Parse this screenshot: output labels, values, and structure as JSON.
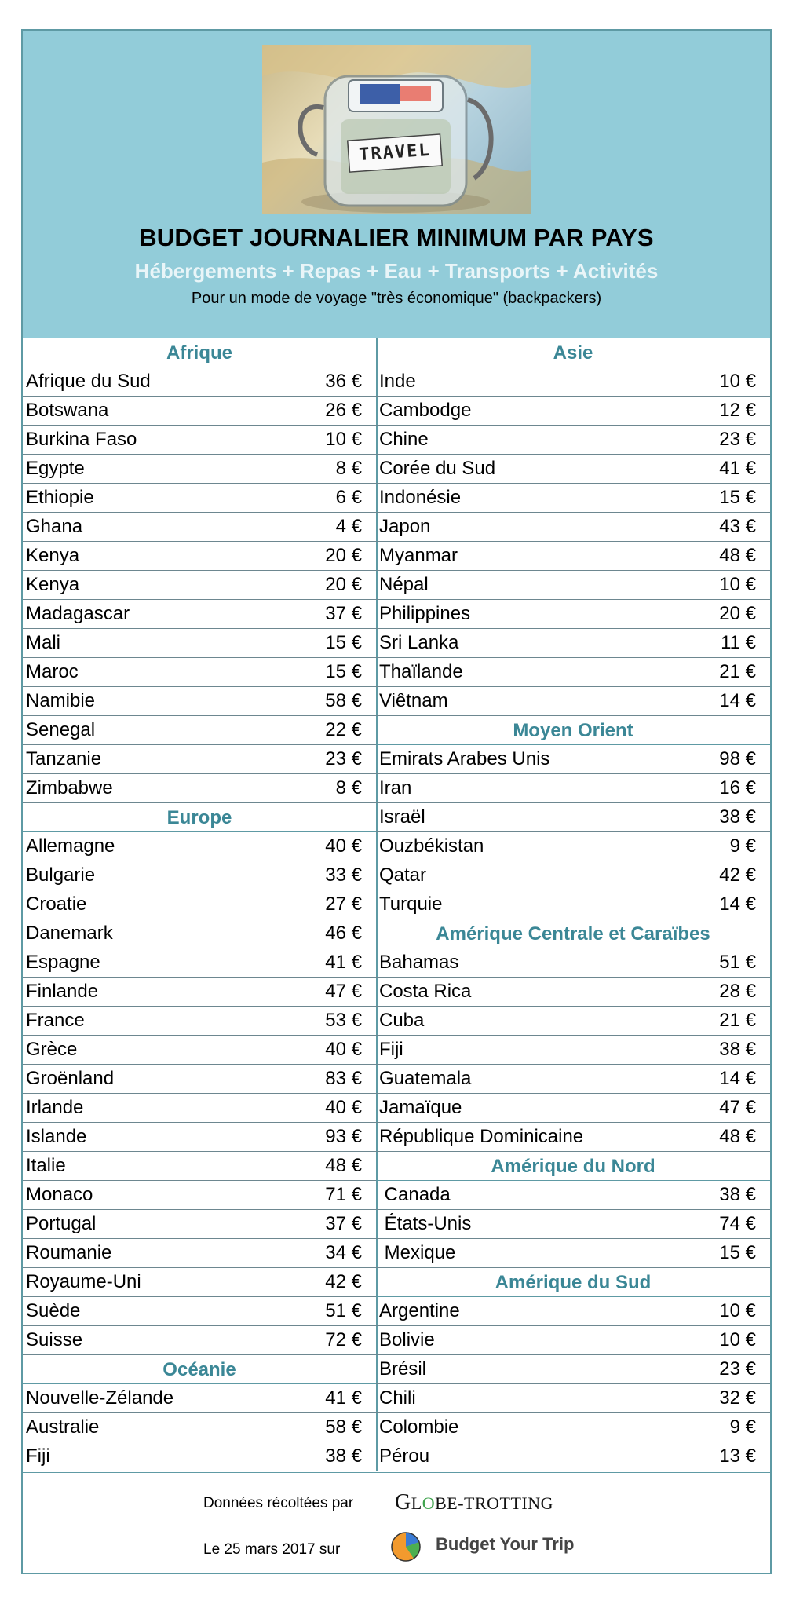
{
  "header": {
    "photo_label": "TRAVEL",
    "title": "BUDGET JOURNALIER MINIMUM PAR PAYS",
    "subtitle": "Hébergements + Repas + Eau + Transports + Activités",
    "note": "Pour un mode de voyage \"très économique\" (backpackers)"
  },
  "left_sections": [
    {
      "title": "Afrique",
      "rows": [
        {
          "name": "Afrique du Sud",
          "value": "36 €"
        },
        {
          "name": "Botswana",
          "value": "26 €"
        },
        {
          "name": "Burkina Faso",
          "value": "10 €"
        },
        {
          "name": "Egypte",
          "value": "8 €"
        },
        {
          "name": "Ethiopie",
          "value": "6 €"
        },
        {
          "name": "Ghana",
          "value": "4 €"
        },
        {
          "name": "Kenya",
          "value": "20 €"
        },
        {
          "name": "Kenya",
          "value": "20 €"
        },
        {
          "name": "Madagascar",
          "value": "37 €"
        },
        {
          "name": "Mali",
          "value": "15 €"
        },
        {
          "name": "Maroc",
          "value": "15 €"
        },
        {
          "name": "Namibie",
          "value": "58 €"
        },
        {
          "name": "Senegal",
          "value": "22 €"
        },
        {
          "name": "Tanzanie",
          "value": "23 €"
        },
        {
          "name": "Zimbabwe",
          "value": "8 €"
        }
      ]
    },
    {
      "title": "Europe",
      "rows": [
        {
          "name": "Allemagne",
          "value": "40 €"
        },
        {
          "name": "Bulgarie",
          "value": "33 €"
        },
        {
          "name": "Croatie",
          "value": "27 €"
        },
        {
          "name": "Danemark",
          "value": "46 €"
        },
        {
          "name": "Espagne",
          "value": "41 €"
        },
        {
          "name": "Finlande",
          "value": "47 €"
        },
        {
          "name": "France",
          "value": "53 €"
        },
        {
          "name": "Grèce",
          "value": "40 €"
        },
        {
          "name": "Groënland",
          "value": "83 €"
        },
        {
          "name": "Irlande",
          "value": "40 €"
        },
        {
          "name": "Islande",
          "value": "93 €"
        },
        {
          "name": "Italie",
          "value": "48 €"
        },
        {
          "name": "Monaco",
          "value": "71 €"
        },
        {
          "name": "Portugal",
          "value": "37 €"
        },
        {
          "name": "Roumanie",
          "value": "34 €"
        },
        {
          "name": "Royaume-Uni",
          "value": "42 €"
        },
        {
          "name": "Suède",
          "value": "51 €"
        },
        {
          "name": "Suisse",
          "value": "72 €"
        }
      ]
    },
    {
      "title": "Océanie",
      "rows": [
        {
          "name": "Nouvelle-Zélande",
          "value": "41 €"
        },
        {
          "name": "Australie",
          "value": "58 €"
        },
        {
          "name": "Fiji",
          "value": "38 €"
        }
      ]
    }
  ],
  "right_sections": [
    {
      "title": "Asie",
      "rows": [
        {
          "name": "Inde",
          "value": "10 €"
        },
        {
          "name": "Cambodge",
          "value": "12 €"
        },
        {
          "name": "Chine",
          "value": "23 €"
        },
        {
          "name": "Corée du Sud",
          "value": "41 €"
        },
        {
          "name": "Indonésie",
          "value": "15 €"
        },
        {
          "name": "Japon",
          "value": "43 €"
        },
        {
          "name": "Myanmar",
          "value": "48 €"
        },
        {
          "name": "Népal",
          "value": "10 €"
        },
        {
          "name": "Philippines",
          "value": "20 €"
        },
        {
          "name": "Sri Lanka",
          "value": "11 €"
        },
        {
          "name": "Thaïlande",
          "value": "21 €"
        },
        {
          "name": "Viêtnam",
          "value": "14 €"
        }
      ]
    },
    {
      "title": "Moyen Orient",
      "rows": [
        {
          "name": "Emirats Arabes Unis",
          "value": "98 €"
        },
        {
          "name": "Iran",
          "value": "16 €"
        },
        {
          "name": "Israël",
          "value": "38 €"
        },
        {
          "name": "Ouzbékistan",
          "value": "9 €"
        },
        {
          "name": "Qatar",
          "value": "42 €"
        },
        {
          "name": "Turquie",
          "value": "14 €"
        }
      ]
    },
    {
      "title": "Amérique Centrale et Caraïbes",
      "rows": [
        {
          "name": "Bahamas",
          "value": "51 €"
        },
        {
          "name": "Costa Rica",
          "value": "28 €"
        },
        {
          "name": "Cuba",
          "value": "21 €"
        },
        {
          "name": "Fiji",
          "value": "38 €"
        },
        {
          "name": "Guatemala",
          "value": "14 €"
        },
        {
          "name": "Jamaïque",
          "value": "47 €"
        },
        {
          "name": "République Dominicaine",
          "value": "48 €"
        }
      ]
    },
    {
      "title": "Amérique du Nord",
      "rows": [
        {
          "name": " Canada",
          "value": "38 €"
        },
        {
          "name": " États-Unis",
          "value": "74 €"
        },
        {
          "name": " Mexique",
          "value": "15 €"
        }
      ]
    },
    {
      "title": "Amérique du Sud",
      "rows": [
        {
          "name": "Argentine",
          "value": "10 €"
        },
        {
          "name": "Bolivie",
          "value": "10 €"
        },
        {
          "name": "Brésil",
          "value": "23 €"
        },
        {
          "name": "Chili",
          "value": "32 €"
        },
        {
          "name": "Colombie",
          "value": "9 €"
        },
        {
          "name": "Pérou",
          "value": "13 €"
        }
      ]
    }
  ],
  "footer": {
    "collected_by": "Données récoltées par",
    "brand1_first": "G",
    "brand1_rest1": "L",
    "brand1_o": "O",
    "brand1_rest2": "BE-T",
    "brand1_rest3": "ROTTING",
    "date_line": "Le 25 mars 2017 sur",
    "brand2": "Budget Your Trip"
  }
}
